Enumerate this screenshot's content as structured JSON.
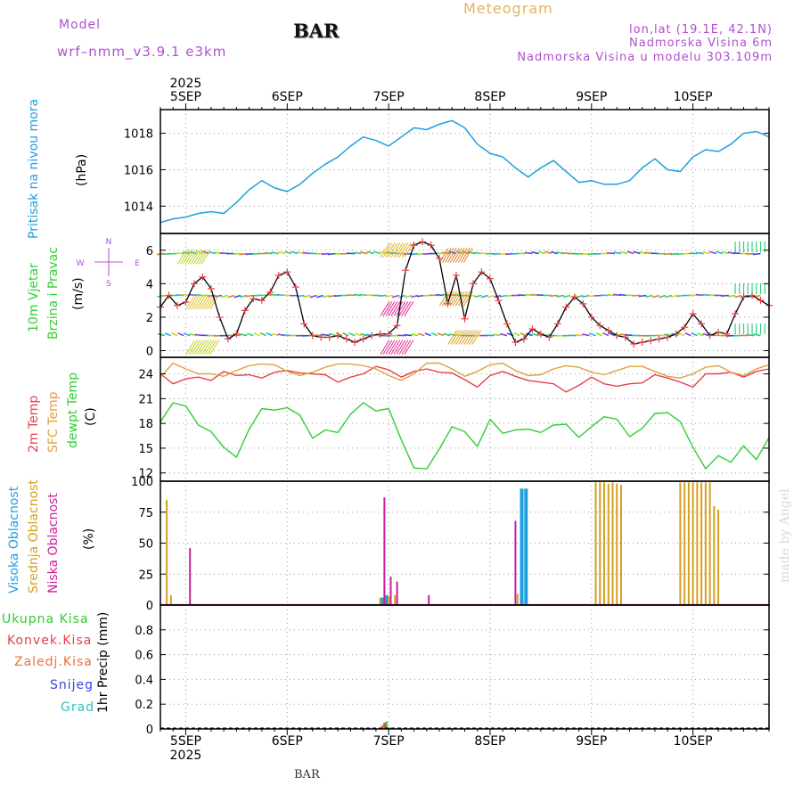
{
  "header": {
    "model_label": "Model",
    "model_name": "wrf–nmm_v3.9.1  e3km",
    "station": "BAR",
    "meteogram_title": "Meteogram",
    "coords": "lon,lat (19.1E, 42.1N)",
    "elevation": "Nadmorska Visina 6m",
    "model_elevation": "Nadmorska Visina u modelu 303.109m"
  },
  "footer": {
    "station": "BAR",
    "credit": "made by Angel"
  },
  "colors": {
    "pressure": "#1E9FE0",
    "temp2m": "#E8404A",
    "sfc_temp": "#E0A040",
    "dewpt": "#33CC33",
    "cloud_high": "#1E9FE0",
    "cloud_mid": "#D4A020",
    "cloud_low": "#CC1E9A",
    "purple_text": "#B050D0",
    "wind_speed": "#E8404A"
  },
  "time_axis": {
    "year": "2025",
    "days": [
      "5SEP",
      "6SEP",
      "7SEP",
      "8SEP",
      "9SEP",
      "10SEP"
    ],
    "start_hour": -6,
    "end_hour": 138
  },
  "panels": {
    "pressure": {
      "label": "Pritisak na nivou mora",
      "unit": "(hPa)"
    },
    "wind": {
      "label1": "10m Vjetar",
      "label2": "Brzina i Pravac",
      "unit": "(m/s)",
      "rose": {
        "n": "N",
        "s": "S",
        "w": "W",
        "e": "E"
      }
    },
    "temperature": {
      "label_2m": "2m Temp",
      "label_sfc": "SFC Temp",
      "label_dew": "dewpt Temp",
      "unit": "(C)"
    },
    "clouds": {
      "label_high": "Visoka Oblacnost",
      "label_mid": "Srednja Oblacnost",
      "label_low": "Niska Oblacnost",
      "unit": "(%)"
    },
    "precip": {
      "legend": [
        "Ukupna Kisa",
        "Konvek.Kisa",
        "Zaledj.Kisa",
        "Snijeg",
        "Grad"
      ],
      "unit": "1hr Precip (mm)"
    }
  },
  "chart_data": [
    {
      "type": "line",
      "name": "pressure",
      "ylim": [
        1012.5,
        1019.3
      ],
      "yticks": [
        1014,
        1016,
        1018
      ],
      "x": [
        -6,
        -3,
        0,
        3,
        6,
        9,
        12,
        15,
        18,
        21,
        24,
        27,
        30,
        33,
        36,
        39,
        42,
        45,
        48,
        51,
        54,
        57,
        60,
        63,
        66,
        69,
        72,
        75,
        78,
        81,
        84,
        87,
        90,
        93,
        96,
        99,
        102,
        105,
        108,
        111,
        114,
        117,
        120,
        123,
        126,
        129,
        132,
        135,
        138
      ],
      "values": [
        1013.1,
        1013.3,
        1013.4,
        1013.6,
        1013.7,
        1013.6,
        1014.2,
        1014.9,
        1015.4,
        1015.0,
        1014.8,
        1015.2,
        1015.8,
        1016.3,
        1016.7,
        1017.3,
        1017.8,
        1017.6,
        1017.3,
        1017.8,
        1018.3,
        1018.2,
        1018.5,
        1018.7,
        1018.3,
        1017.4,
        1016.9,
        1016.7,
        1016.1,
        1015.6,
        1016.1,
        1016.5,
        1015.9,
        1015.3,
        1015.4,
        1015.2,
        1015.2,
        1015.4,
        1016.1,
        1016.6,
        1016.0,
        1015.9,
        1016.7,
        1017.1,
        1017.0,
        1017.4,
        1018.0,
        1018.1,
        1017.8
      ]
    },
    {
      "type": "line",
      "name": "wind_speed",
      "ylim": [
        -0.4,
        7.0
      ],
      "yticks": [
        0,
        2,
        4,
        6
      ],
      "x": [
        -6,
        -4,
        -2,
        0,
        2,
        4,
        6,
        8,
        10,
        12,
        14,
        16,
        18,
        20,
        22,
        24,
        26,
        28,
        30,
        32,
        34,
        36,
        38,
        40,
        42,
        44,
        46,
        48,
        50,
        52,
        54,
        56,
        58,
        60,
        62,
        64,
        66,
        68,
        70,
        72,
        74,
        76,
        78,
        80,
        82,
        84,
        86,
        88,
        90,
        92,
        94,
        96,
        98,
        100,
        102,
        104,
        106,
        108,
        110,
        112,
        114,
        116,
        118,
        120,
        122,
        124,
        126,
        128,
        130,
        132,
        134,
        136,
        138
      ],
      "values": [
        2.6,
        3.3,
        2.7,
        2.9,
        4.0,
        4.4,
        3.7,
        2.0,
        0.7,
        1.0,
        2.4,
        3.1,
        3.0,
        3.5,
        4.5,
        4.7,
        3.8,
        1.6,
        0.9,
        0.8,
        0.8,
        0.9,
        0.7,
        0.5,
        0.7,
        0.9,
        1.0,
        1.0,
        1.5,
        4.8,
        6.3,
        6.5,
        6.3,
        5.5,
        2.8,
        4.5,
        1.9,
        4.0,
        4.7,
        4.3,
        3.0,
        1.6,
        0.5,
        0.7,
        1.3,
        1.0,
        0.8,
        1.6,
        2.6,
        3.2,
        2.8,
        2.0,
        1.5,
        1.2,
        0.9,
        0.8,
        0.4,
        0.5,
        0.6,
        0.7,
        0.8,
        1.0,
        1.4,
        2.2,
        1.6,
        0.9,
        1.1,
        1.0,
        2.2,
        3.2,
        3.3,
        3.0,
        2.7
      ]
    },
    {
      "type": "line",
      "name": "temperature",
      "ylim": [
        11.0,
        26.0
      ],
      "yticks": [
        12,
        15,
        18,
        21,
        24
      ],
      "x": [
        -6,
        -3,
        0,
        3,
        6,
        9,
        12,
        15,
        18,
        21,
        24,
        27,
        30,
        33,
        36,
        39,
        42,
        45,
        48,
        51,
        54,
        57,
        60,
        63,
        66,
        69,
        72,
        75,
        78,
        81,
        84,
        87,
        90,
        93,
        96,
        99,
        102,
        105,
        108,
        111,
        114,
        117,
        120,
        123,
        126,
        129,
        132,
        135,
        138
      ],
      "series": [
        {
          "name": "2m Temp",
          "values": [
            24.0,
            22.8,
            23.4,
            23.6,
            23.2,
            24.3,
            23.8,
            23.9,
            23.5,
            24.2,
            24.4,
            24.1,
            24.0,
            23.9,
            23.0,
            23.6,
            24.0,
            24.9,
            24.5,
            23.6,
            24.3,
            24.6,
            24.2,
            24.1,
            23.3,
            22.4,
            23.8,
            24.3,
            23.7,
            23.2,
            23.0,
            22.8,
            21.8,
            22.6,
            23.6,
            22.8,
            22.5,
            22.8,
            22.9,
            23.9,
            23.5,
            23.0,
            22.4,
            24.0,
            24.0,
            24.2,
            23.6,
            24.3,
            24.6
          ]
        },
        {
          "name": "SFC Temp",
          "values": [
            23.6,
            25.3,
            24.6,
            24.0,
            24.0,
            23.7,
            24.4,
            25.0,
            25.2,
            25.1,
            24.3,
            23.8,
            24.2,
            24.8,
            25.2,
            25.2,
            25.0,
            24.6,
            23.8,
            23.2,
            24.0,
            25.3,
            25.3,
            24.6,
            23.7,
            24.3,
            25.1,
            25.3,
            24.4,
            23.8,
            23.9,
            24.6,
            25.0,
            24.8,
            24.2,
            23.9,
            24.4,
            24.9,
            24.9,
            24.3,
            23.7,
            23.5,
            24.0,
            24.8,
            25.0,
            24.2,
            23.8,
            24.6,
            25.1
          ]
        },
        {
          "name": "dewpt Temp",
          "values": [
            18.2,
            20.5,
            20.1,
            17.8,
            17.0,
            15.1,
            13.9,
            17.3,
            19.8,
            19.6,
            19.9,
            19.0,
            16.2,
            17.2,
            16.9,
            19.1,
            20.5,
            19.5,
            19.8,
            16.0,
            12.6,
            12.5,
            14.9,
            17.6,
            17.0,
            15.2,
            18.5,
            16.8,
            17.2,
            17.3,
            16.9,
            17.8,
            17.9,
            16.3,
            17.6,
            18.8,
            18.5,
            16.4,
            17.4,
            19.2,
            19.3,
            18.2,
            15.1,
            12.5,
            14.1,
            13.3,
            15.3,
            13.6,
            16.3
          ]
        }
      ]
    },
    {
      "type": "bar",
      "name": "clouds",
      "ylim": [
        0,
        100
      ],
      "yticks": [
        0,
        25,
        50,
        75,
        100
      ],
      "series": [
        {
          "name": "Visoka Oblacnost",
          "x": [
            46.5,
            47.5,
            79.5,
            80.5
          ],
          "values": [
            6,
            8,
            94,
            94
          ]
        },
        {
          "name": "Srednja Oblacnost",
          "x": [
            -4.5,
            -3.5,
            46.0,
            47.0,
            48.0,
            49.5,
            78.5,
            97.0,
            98.0,
            99.0,
            100.0,
            101.0,
            102.0,
            103.0,
            117.0,
            118.0,
            119.0,
            120.0,
            121.0,
            122.0,
            123.0,
            124.0,
            125.0,
            126.0
          ],
          "values": [
            85,
            8,
            6,
            15,
            7,
            8,
            9,
            99,
            99,
            99,
            98,
            99,
            98,
            97,
            99,
            99,
            99,
            99,
            99,
            99,
            99,
            99,
            80,
            77
          ]
        },
        {
          "name": "Niska Oblacnost",
          "x": [
            1.0,
            47.0,
            48.5,
            50.0,
            57.5,
            78.0
          ],
          "values": [
            46,
            87,
            23,
            19,
            8,
            68
          ]
        }
      ]
    },
    {
      "type": "bar",
      "name": "precip",
      "ylim": [
        0,
        1.0
      ],
      "yticks": [
        0,
        0.2,
        0.4,
        0.6,
        0.8
      ],
      "series": [
        {
          "name": "Ukupna Kisa",
          "x": [
            47.5,
            48.5,
            77.5
          ],
          "values": [
            0.06,
            0.01,
            0.01
          ]
        },
        {
          "name": "Konvek.Kisa",
          "x": [
            47.0,
            48.0
          ],
          "values": [
            0.05,
            0.01
          ]
        },
        {
          "name": "Zaledj.Kisa",
          "x": [
            46.5
          ],
          "values": [
            0.03
          ]
        }
      ]
    }
  ]
}
